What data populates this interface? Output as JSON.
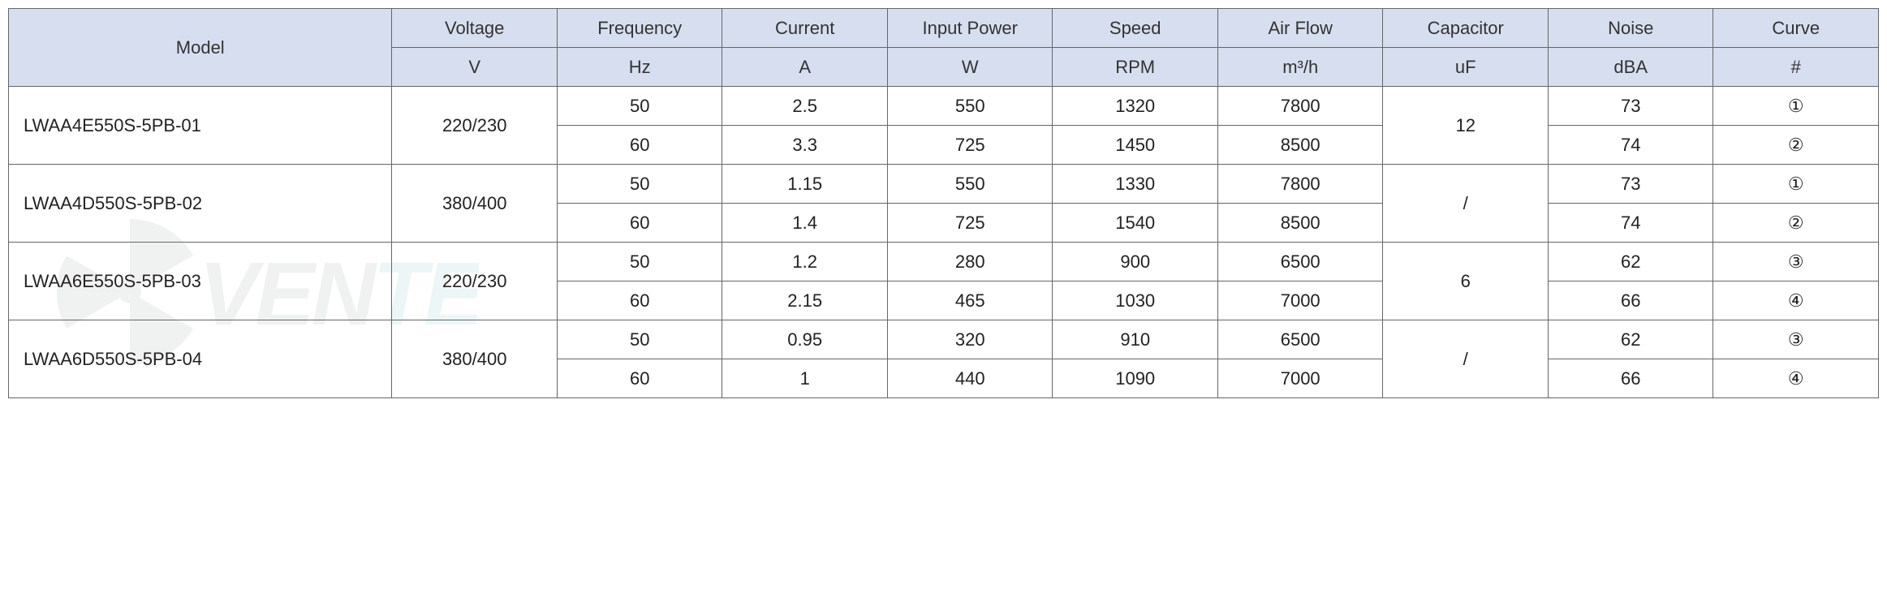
{
  "table": {
    "header_bg": "#d7def0",
    "border_color": "#666666",
    "text_color": "#222222",
    "font_family": "Segoe UI Light, Arial",
    "columns": [
      {
        "label": "Model",
        "unit": "",
        "width_pct": 20.5
      },
      {
        "label": "Voltage",
        "unit": "V",
        "width_pct": 8.83
      },
      {
        "label": "Frequency",
        "unit": "Hz",
        "width_pct": 8.83
      },
      {
        "label": "Current",
        "unit": "A",
        "width_pct": 8.83
      },
      {
        "label": "Input Power",
        "unit": "W",
        "width_pct": 8.83
      },
      {
        "label": "Speed",
        "unit": "RPM",
        "width_pct": 8.83
      },
      {
        "label": "Air Flow",
        "unit": "m³/h",
        "width_pct": 8.83
      },
      {
        "label": "Capacitor",
        "unit": "uF",
        "width_pct": 8.83
      },
      {
        "label": "Noise",
        "unit": "dBA",
        "width_pct": 8.83
      },
      {
        "label": "Curve",
        "unit": "#",
        "width_pct": 8.83
      }
    ],
    "models": [
      {
        "model": "LWAA4E550S-5PB-01",
        "voltage": "220/230",
        "capacitor": "12",
        "rows": [
          {
            "frequency": "50",
            "current": "2.5",
            "input_power": "550",
            "speed": "1320",
            "air_flow": "7800",
            "noise": "73",
            "curve": "①"
          },
          {
            "frequency": "60",
            "current": "3.3",
            "input_power": "725",
            "speed": "1450",
            "air_flow": "8500",
            "noise": "74",
            "curve": "②"
          }
        ]
      },
      {
        "model": "LWAA4D550S-5PB-02",
        "voltage": "380/400",
        "capacitor": "/",
        "rows": [
          {
            "frequency": "50",
            "current": "1.15",
            "input_power": "550",
            "speed": "1330",
            "air_flow": "7800",
            "noise": "73",
            "curve": "①"
          },
          {
            "frequency": "60",
            "current": "1.4",
            "input_power": "725",
            "speed": "1540",
            "air_flow": "8500",
            "noise": "74",
            "curve": "②"
          }
        ]
      },
      {
        "model": "LWAA6E550S-5PB-03",
        "voltage": "220/230",
        "capacitor": "6",
        "rows": [
          {
            "frequency": "50",
            "current": "1.2",
            "input_power": "280",
            "speed": "900",
            "air_flow": "6500",
            "noise": "62",
            "curve": "③"
          },
          {
            "frequency": "60",
            "current": "2.15",
            "input_power": "465",
            "speed": "1030",
            "air_flow": "7000",
            "noise": "66",
            "curve": "④"
          }
        ]
      },
      {
        "model": "LWAA6D550S-5PB-04",
        "voltage": "380/400",
        "capacitor": "/",
        "rows": [
          {
            "frequency": "50",
            "current": "0.95",
            "input_power": "320",
            "speed": "910",
            "air_flow": "6500",
            "noise": "62",
            "curve": "③"
          },
          {
            "frequency": "60",
            "current": "1",
            "input_power": "440",
            "speed": "1090",
            "air_flow": "7000",
            "noise": "66",
            "curve": "④"
          }
        ]
      }
    ]
  },
  "watermark": {
    "text": "VENTEL",
    "fan_color": "#9aa0a6",
    "text_colors": [
      "#8a8f94",
      "#8a8f94",
      "#8a8f94",
      "#8a8f94",
      "#6fb8c6",
      "#6fb8c6"
    ]
  }
}
